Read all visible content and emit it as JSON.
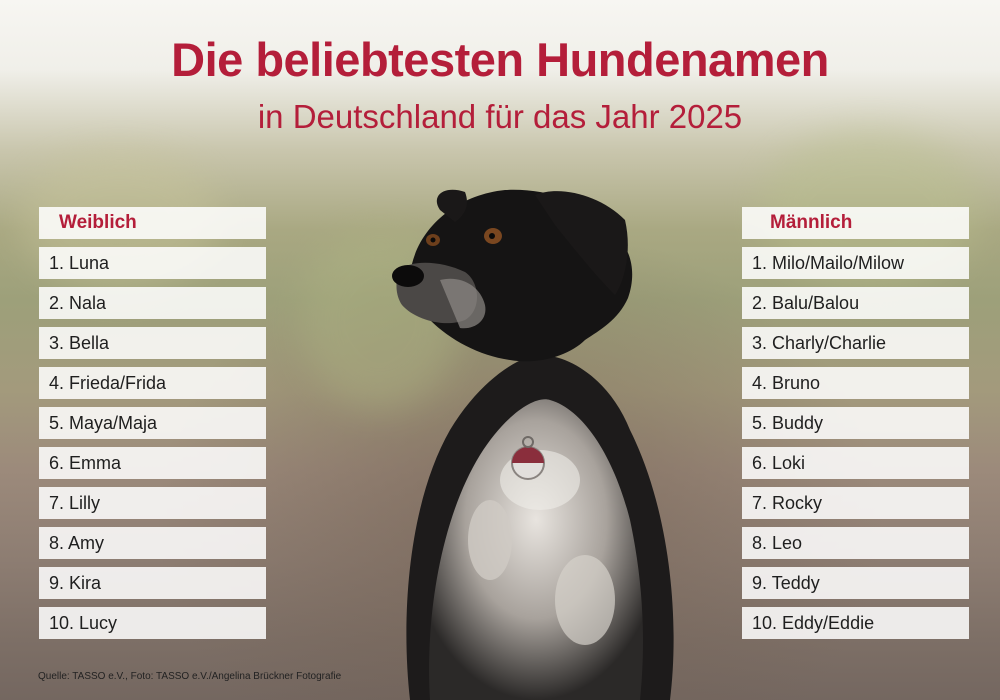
{
  "title": "Die beliebtesten Hundenamen",
  "subtitle": "in Deutschland für das Jahr 2025",
  "female": {
    "heading": "Weiblich",
    "names": [
      "1. Luna",
      "2. Nala",
      "3. Bella",
      "4. Frieda/Frida",
      "5. Maya/Maja",
      "6. Emma",
      "7. Lilly",
      "8. Amy",
      "9. Kira",
      "10. Lucy"
    ]
  },
  "male": {
    "heading": "Männlich",
    "names": [
      "1. Milo/Mailo/Milow",
      "2. Balu/Balou",
      "3. Charly/Charlie",
      "4. Bruno",
      "5. Buddy",
      "6. Loki",
      "7. Rocky",
      "8. Leo",
      "9. Teddy",
      "10. Eddy/Eddie"
    ]
  },
  "source": "Quelle: TASSO e.V., Foto: TASSO e.V./Angelina Brückner Fotografie",
  "colors": {
    "accent": "#b41e3a"
  }
}
